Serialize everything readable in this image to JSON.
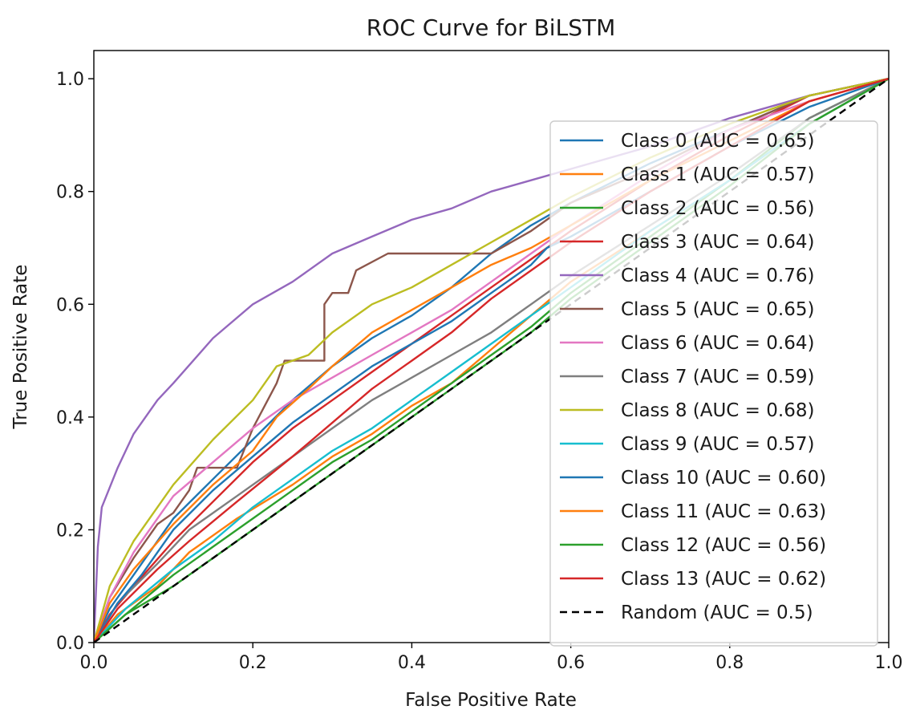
{
  "chart_data": {
    "type": "line",
    "title": "ROC Curve for BiLSTM",
    "xlabel": "False Positive Rate",
    "ylabel": "True Positive Rate",
    "xlim": [
      0.0,
      1.0
    ],
    "ylim": [
      0.0,
      1.05
    ],
    "xticks": [
      "0.0",
      "0.2",
      "0.4",
      "0.6",
      "0.8",
      "1.0"
    ],
    "yticks": [
      "0.0",
      "0.2",
      "0.4",
      "0.6",
      "0.8",
      "1.0"
    ],
    "grid": false,
    "legend_position": "lower-right",
    "series": [
      {
        "name": "Class 0 (AUC = 0.65)",
        "color": "#1f77b4",
        "style": "solid",
        "points": [
          [
            0,
            0
          ],
          [
            0.02,
            0.06
          ],
          [
            0.05,
            0.12
          ],
          [
            0.1,
            0.22
          ],
          [
            0.15,
            0.29
          ],
          [
            0.2,
            0.36
          ],
          [
            0.25,
            0.43
          ],
          [
            0.3,
            0.49
          ],
          [
            0.35,
            0.54
          ],
          [
            0.4,
            0.58
          ],
          [
            0.45,
            0.63
          ],
          [
            0.5,
            0.69
          ],
          [
            0.55,
            0.74
          ],
          [
            0.6,
            0.78
          ],
          [
            0.7,
            0.85
          ],
          [
            0.8,
            0.91
          ],
          [
            0.9,
            0.97
          ],
          [
            1,
            1
          ]
        ]
      },
      {
        "name": "Class 1 (AUC = 0.57)",
        "color": "#ff7f0e",
        "style": "solid",
        "points": [
          [
            0,
            0
          ],
          [
            0.03,
            0.05
          ],
          [
            0.08,
            0.1
          ],
          [
            0.12,
            0.16
          ],
          [
            0.18,
            0.22
          ],
          [
            0.25,
            0.28
          ],
          [
            0.3,
            0.33
          ],
          [
            0.35,
            0.37
          ],
          [
            0.4,
            0.42
          ],
          [
            0.45,
            0.46
          ],
          [
            0.5,
            0.52
          ],
          [
            0.55,
            0.58
          ],
          [
            0.6,
            0.64
          ],
          [
            0.7,
            0.73
          ],
          [
            0.8,
            0.82
          ],
          [
            0.9,
            0.92
          ],
          [
            1,
            1
          ]
        ]
      },
      {
        "name": "Class 2 (AUC = 0.56)",
        "color": "#2ca02c",
        "style": "solid",
        "points": [
          [
            0,
            0
          ],
          [
            0.04,
            0.05
          ],
          [
            0.1,
            0.12
          ],
          [
            0.15,
            0.17
          ],
          [
            0.2,
            0.22
          ],
          [
            0.25,
            0.27
          ],
          [
            0.3,
            0.32
          ],
          [
            0.35,
            0.36
          ],
          [
            0.4,
            0.41
          ],
          [
            0.45,
            0.46
          ],
          [
            0.5,
            0.51
          ],
          [
            0.55,
            0.56
          ],
          [
            0.6,
            0.62
          ],
          [
            0.7,
            0.72
          ],
          [
            0.8,
            0.82
          ],
          [
            0.9,
            0.93
          ],
          [
            1,
            1
          ]
        ]
      },
      {
        "name": "Class 3 (AUC = 0.64)",
        "color": "#d62728",
        "style": "solid",
        "points": [
          [
            0,
            0
          ],
          [
            0.02,
            0.05
          ],
          [
            0.05,
            0.1
          ],
          [
            0.1,
            0.18
          ],
          [
            0.15,
            0.25
          ],
          [
            0.2,
            0.32
          ],
          [
            0.25,
            0.38
          ],
          [
            0.3,
            0.43
          ],
          [
            0.35,
            0.48
          ],
          [
            0.4,
            0.53
          ],
          [
            0.45,
            0.58
          ],
          [
            0.5,
            0.63
          ],
          [
            0.55,
            0.68
          ],
          [
            0.6,
            0.73
          ],
          [
            0.7,
            0.82
          ],
          [
            0.8,
            0.9
          ],
          [
            0.9,
            0.97
          ],
          [
            1,
            1
          ]
        ]
      },
      {
        "name": "Class 4 (AUC = 0.76)",
        "color": "#9467bd",
        "style": "solid",
        "points": [
          [
            0,
            0
          ],
          [
            0.005,
            0.17
          ],
          [
            0.01,
            0.24
          ],
          [
            0.03,
            0.31
          ],
          [
            0.05,
            0.37
          ],
          [
            0.08,
            0.43
          ],
          [
            0.1,
            0.46
          ],
          [
            0.15,
            0.54
          ],
          [
            0.2,
            0.6
          ],
          [
            0.25,
            0.64
          ],
          [
            0.3,
            0.69
          ],
          [
            0.35,
            0.72
          ],
          [
            0.4,
            0.75
          ],
          [
            0.45,
            0.77
          ],
          [
            0.5,
            0.8
          ],
          [
            0.55,
            0.82
          ],
          [
            0.6,
            0.84
          ],
          [
            0.7,
            0.88
          ],
          [
            0.8,
            0.93
          ],
          [
            0.9,
            0.97
          ],
          [
            1,
            1
          ]
        ]
      },
      {
        "name": "Class 5 (AUC = 0.65)",
        "color": "#8c564b",
        "style": "solid",
        "points": [
          [
            0,
            0
          ],
          [
            0.02,
            0.08
          ],
          [
            0.05,
            0.15
          ],
          [
            0.08,
            0.21
          ],
          [
            0.1,
            0.23
          ],
          [
            0.12,
            0.27
          ],
          [
            0.13,
            0.31
          ],
          [
            0.18,
            0.31
          ],
          [
            0.2,
            0.38
          ],
          [
            0.23,
            0.46
          ],
          [
            0.24,
            0.5
          ],
          [
            0.29,
            0.5
          ],
          [
            0.29,
            0.6
          ],
          [
            0.3,
            0.62
          ],
          [
            0.32,
            0.62
          ],
          [
            0.33,
            0.66
          ],
          [
            0.37,
            0.69
          ],
          [
            0.5,
            0.69
          ],
          [
            0.55,
            0.73
          ],
          [
            0.6,
            0.78
          ],
          [
            0.7,
            0.84
          ],
          [
            0.8,
            0.91
          ],
          [
            0.9,
            0.97
          ],
          [
            1,
            1
          ]
        ]
      },
      {
        "name": "Class 6 (AUC = 0.64)",
        "color": "#e377c2",
        "style": "solid",
        "points": [
          [
            0,
            0
          ],
          [
            0.02,
            0.08
          ],
          [
            0.05,
            0.16
          ],
          [
            0.1,
            0.26
          ],
          [
            0.15,
            0.32
          ],
          [
            0.2,
            0.38
          ],
          [
            0.25,
            0.43
          ],
          [
            0.3,
            0.47
          ],
          [
            0.35,
            0.51
          ],
          [
            0.4,
            0.55
          ],
          [
            0.45,
            0.59
          ],
          [
            0.5,
            0.64
          ],
          [
            0.55,
            0.69
          ],
          [
            0.6,
            0.74
          ],
          [
            0.7,
            0.83
          ],
          [
            0.8,
            0.91
          ],
          [
            0.9,
            0.96
          ],
          [
            1,
            1
          ]
        ]
      },
      {
        "name": "Class 7 (AUC = 0.59)",
        "color": "#7f7f7f",
        "style": "solid",
        "points": [
          [
            0,
            0
          ],
          [
            0.03,
            0.07
          ],
          [
            0.08,
            0.14
          ],
          [
            0.12,
            0.2
          ],
          [
            0.18,
            0.26
          ],
          [
            0.25,
            0.33
          ],
          [
            0.3,
            0.38
          ],
          [
            0.35,
            0.43
          ],
          [
            0.4,
            0.47
          ],
          [
            0.45,
            0.51
          ],
          [
            0.5,
            0.55
          ],
          [
            0.55,
            0.6
          ],
          [
            0.6,
            0.65
          ],
          [
            0.7,
            0.74
          ],
          [
            0.8,
            0.83
          ],
          [
            0.9,
            0.93
          ],
          [
            1,
            1
          ]
        ]
      },
      {
        "name": "Class 8 (AUC = 0.68)",
        "color": "#bcbd22",
        "style": "solid",
        "points": [
          [
            0,
            0
          ],
          [
            0.02,
            0.1
          ],
          [
            0.05,
            0.18
          ],
          [
            0.1,
            0.28
          ],
          [
            0.15,
            0.36
          ],
          [
            0.2,
            0.43
          ],
          [
            0.23,
            0.49
          ],
          [
            0.27,
            0.51
          ],
          [
            0.3,
            0.55
          ],
          [
            0.35,
            0.6
          ],
          [
            0.4,
            0.63
          ],
          [
            0.45,
            0.67
          ],
          [
            0.5,
            0.71
          ],
          [
            0.55,
            0.75
          ],
          [
            0.6,
            0.79
          ],
          [
            0.7,
            0.86
          ],
          [
            0.8,
            0.92
          ],
          [
            0.9,
            0.97
          ],
          [
            1,
            1
          ]
        ]
      },
      {
        "name": "Class 9 (AUC = 0.57)",
        "color": "#17becf",
        "style": "solid",
        "points": [
          [
            0,
            0
          ],
          [
            0.04,
            0.06
          ],
          [
            0.1,
            0.13
          ],
          [
            0.15,
            0.18
          ],
          [
            0.2,
            0.24
          ],
          [
            0.25,
            0.29
          ],
          [
            0.3,
            0.34
          ],
          [
            0.35,
            0.38
          ],
          [
            0.4,
            0.43
          ],
          [
            0.45,
            0.48
          ],
          [
            0.5,
            0.53
          ],
          [
            0.55,
            0.58
          ],
          [
            0.6,
            0.63
          ],
          [
            0.7,
            0.73
          ],
          [
            0.8,
            0.82
          ],
          [
            0.9,
            0.92
          ],
          [
            1,
            1
          ]
        ]
      },
      {
        "name": "Class 10 (AUC = 0.60)",
        "color": "#1f77b4",
        "style": "solid",
        "points": [
          [
            0,
            0
          ],
          [
            0.03,
            0.07
          ],
          [
            0.06,
            0.12
          ],
          [
            0.1,
            0.2
          ],
          [
            0.15,
            0.27
          ],
          [
            0.2,
            0.33
          ],
          [
            0.25,
            0.39
          ],
          [
            0.3,
            0.44
          ],
          [
            0.35,
            0.49
          ],
          [
            0.4,
            0.53
          ],
          [
            0.45,
            0.57
          ],
          [
            0.5,
            0.62
          ],
          [
            0.55,
            0.67
          ],
          [
            0.57,
            0.7
          ],
          [
            0.6,
            0.72
          ],
          [
            0.7,
            0.8
          ],
          [
            0.8,
            0.88
          ],
          [
            0.9,
            0.95
          ],
          [
            1,
            1
          ]
        ]
      },
      {
        "name": "Class 11 (AUC = 0.63)",
        "color": "#ff7f0e",
        "style": "solid",
        "points": [
          [
            0,
            0
          ],
          [
            0.02,
            0.07
          ],
          [
            0.05,
            0.13
          ],
          [
            0.1,
            0.21
          ],
          [
            0.15,
            0.28
          ],
          [
            0.2,
            0.34
          ],
          [
            0.23,
            0.4
          ],
          [
            0.27,
            0.45
          ],
          [
            0.3,
            0.49
          ],
          [
            0.35,
            0.55
          ],
          [
            0.4,
            0.59
          ],
          [
            0.45,
            0.63
          ],
          [
            0.5,
            0.67
          ],
          [
            0.55,
            0.7
          ],
          [
            0.6,
            0.74
          ],
          [
            0.7,
            0.82
          ],
          [
            0.8,
            0.89
          ],
          [
            0.9,
            0.96
          ],
          [
            1,
            1
          ]
        ]
      },
      {
        "name": "Class 12 (AUC = 0.56)",
        "color": "#2ca02c",
        "style": "solid",
        "points": [
          [
            0,
            0
          ],
          [
            0.04,
            0.05
          ],
          [
            0.1,
            0.1
          ],
          [
            0.15,
            0.15
          ],
          [
            0.2,
            0.2
          ],
          [
            0.25,
            0.25
          ],
          [
            0.3,
            0.3
          ],
          [
            0.35,
            0.35
          ],
          [
            0.4,
            0.4
          ],
          [
            0.45,
            0.45
          ],
          [
            0.5,
            0.5
          ],
          [
            0.55,
            0.55
          ],
          [
            0.6,
            0.61
          ],
          [
            0.7,
            0.71
          ],
          [
            0.8,
            0.81
          ],
          [
            0.9,
            0.92
          ],
          [
            1,
            1
          ]
        ]
      },
      {
        "name": "Class 13 (AUC = 0.62)",
        "color": "#d62728",
        "style": "solid",
        "points": [
          [
            0,
            0
          ],
          [
            0.03,
            0.06
          ],
          [
            0.08,
            0.13
          ],
          [
            0.12,
            0.18
          ],
          [
            0.18,
            0.25
          ],
          [
            0.25,
            0.33
          ],
          [
            0.3,
            0.39
          ],
          [
            0.35,
            0.45
          ],
          [
            0.4,
            0.5
          ],
          [
            0.45,
            0.55
          ],
          [
            0.5,
            0.61
          ],
          [
            0.55,
            0.66
          ],
          [
            0.6,
            0.71
          ],
          [
            0.7,
            0.8
          ],
          [
            0.8,
            0.88
          ],
          [
            0.9,
            0.96
          ],
          [
            1,
            1
          ]
        ]
      },
      {
        "name": "Random (AUC = 0.5)",
        "color": "#000000",
        "style": "dashed",
        "points": [
          [
            0,
            0
          ],
          [
            1,
            1
          ]
        ]
      }
    ]
  }
}
